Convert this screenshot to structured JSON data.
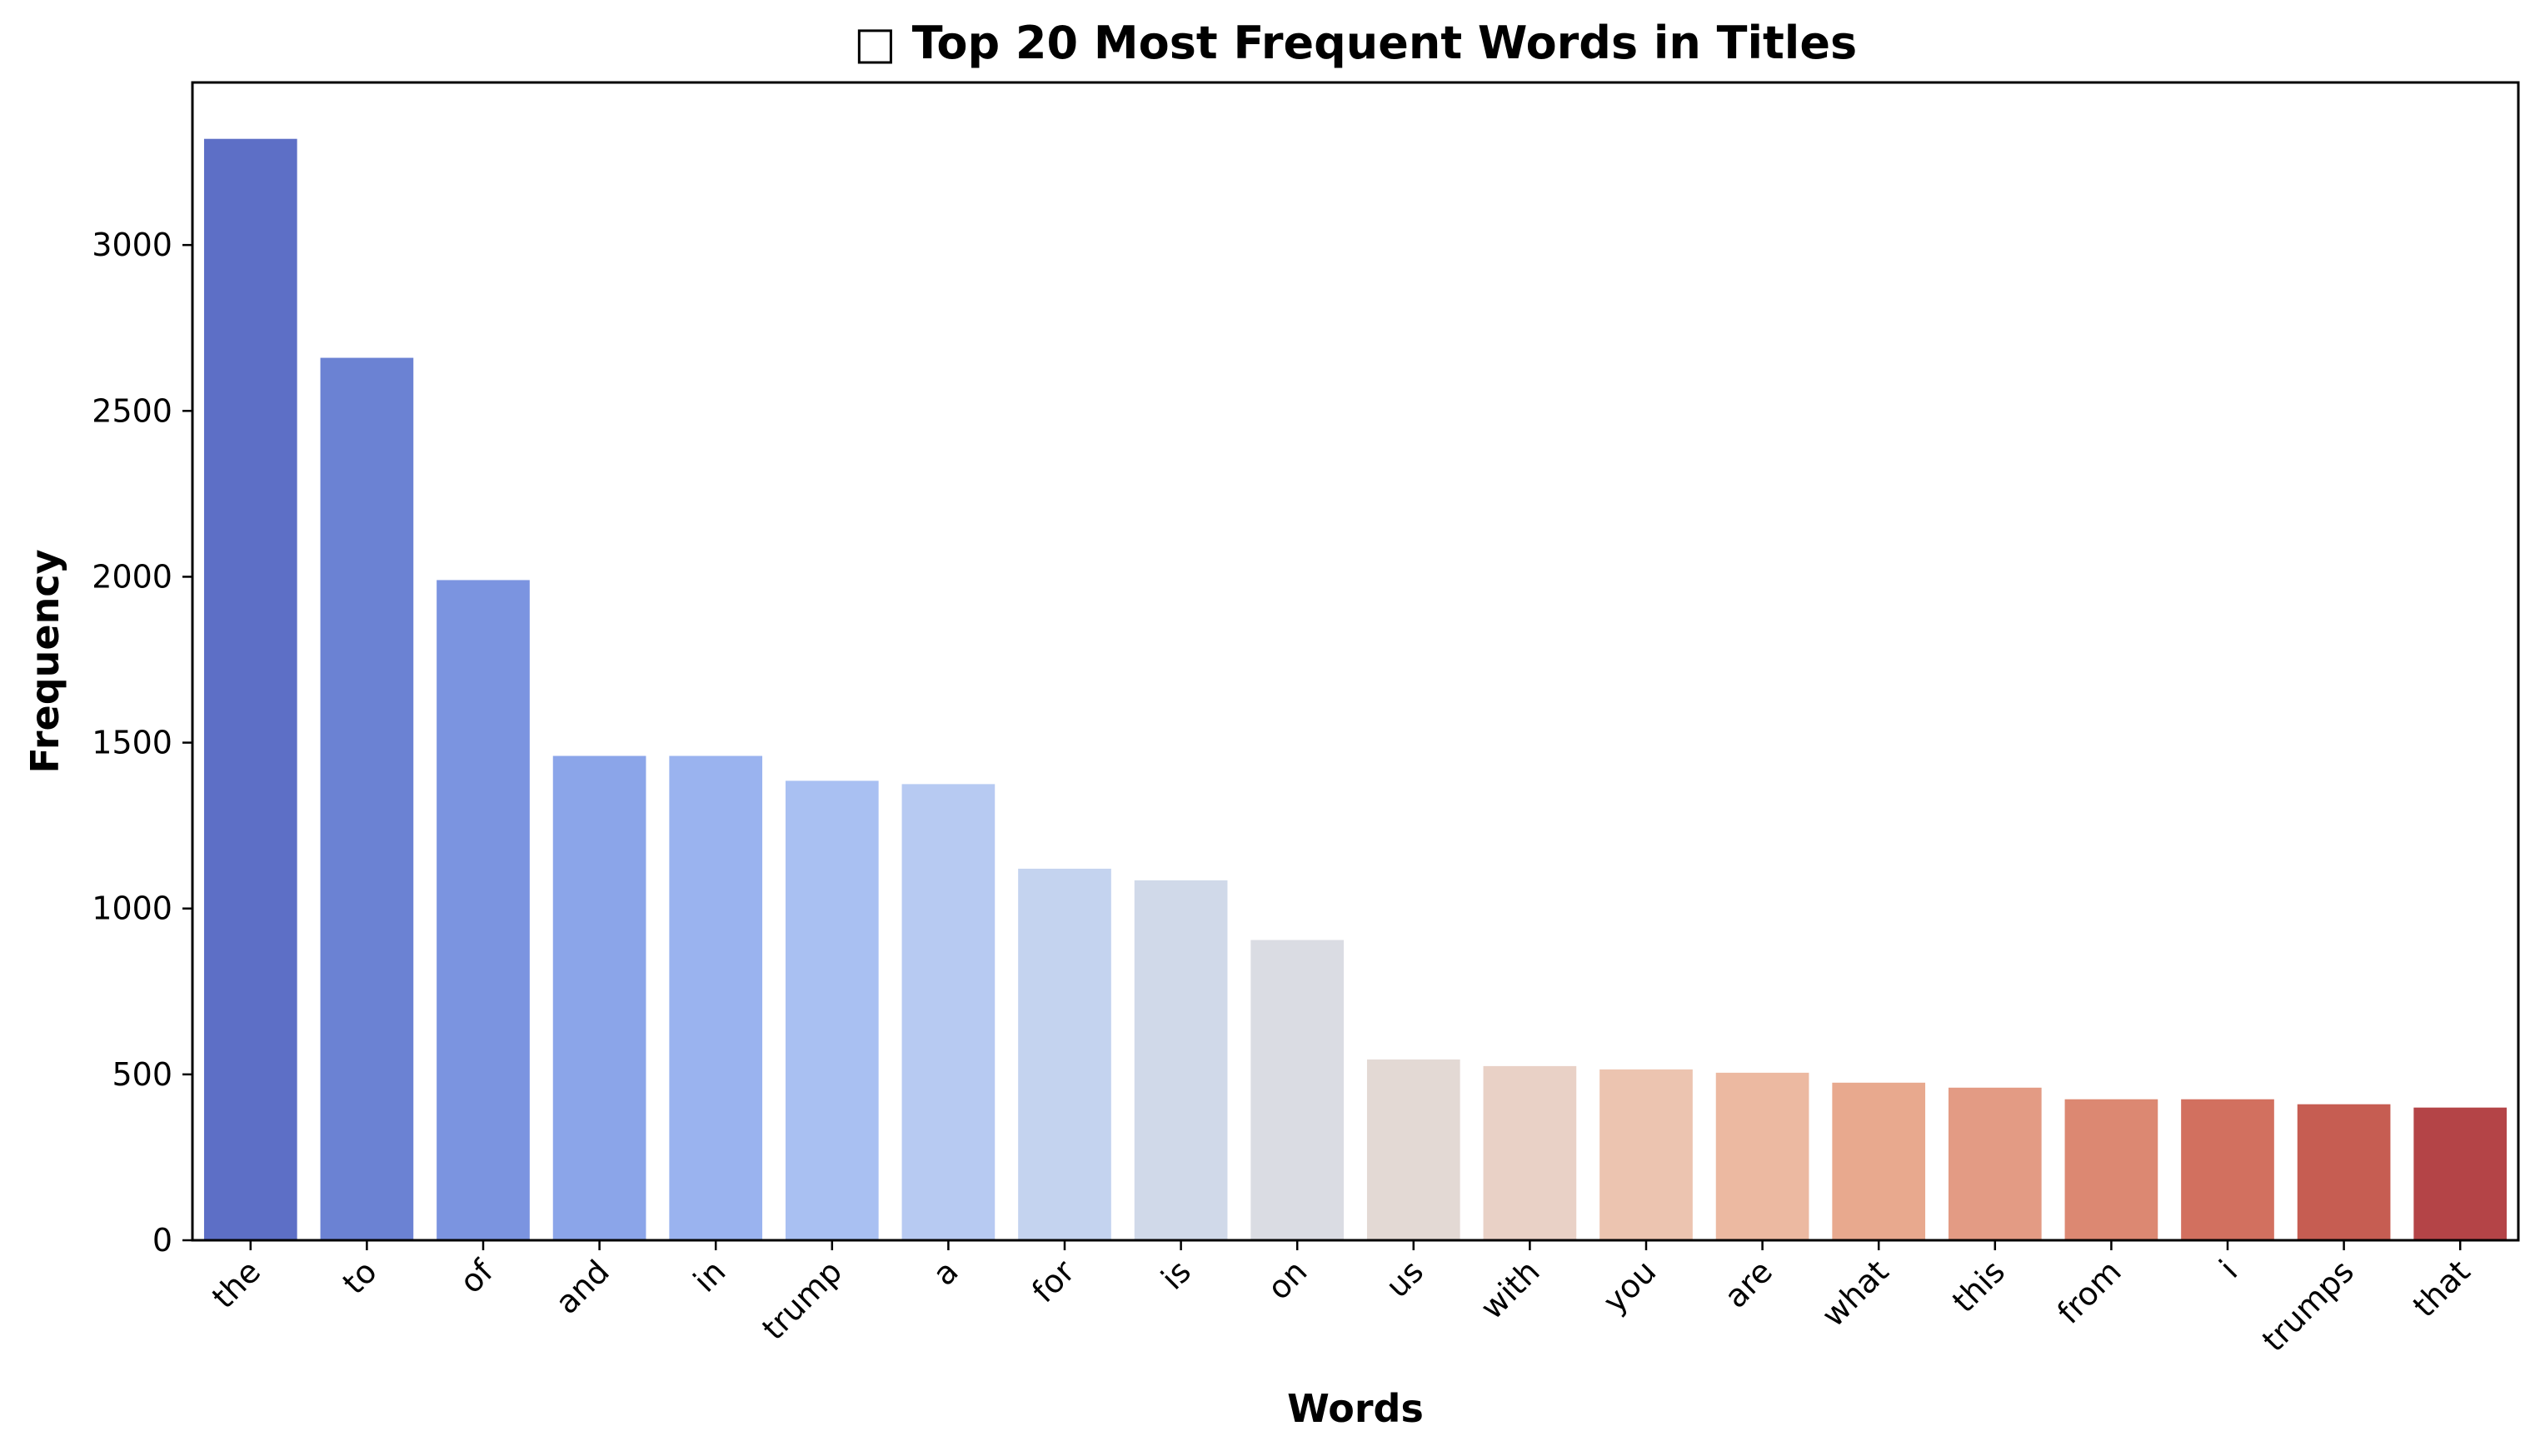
{
  "chart_data": {
    "type": "bar",
    "title": "□ Top 20 Most Frequent Words in Titles",
    "xlabel": "Words",
    "ylabel": "Frequency",
    "categories": [
      "the",
      "to",
      "of",
      "and",
      "in",
      "trump",
      "a",
      "for",
      "is",
      "on",
      "us",
      "with",
      "you",
      "are",
      "what",
      "this",
      "from",
      "i",
      "trumps",
      "that"
    ],
    "values": [
      3320,
      2660,
      1990,
      1460,
      1460,
      1385,
      1375,
      1120,
      1085,
      905,
      545,
      525,
      515,
      505,
      475,
      460,
      425,
      425,
      410,
      400
    ],
    "colors": [
      "#5d6fc6",
      "#6b82d3",
      "#7b94e0",
      "#8ba5e9",
      "#9ab3ef",
      "#a9c0f2",
      "#b7caf2",
      "#c4d3ef",
      "#d0d9e9",
      "#dadce3",
      "#e3d9d4",
      "#e9d1c6",
      "#ecc4b0",
      "#ecb9a1",
      "#e8a98e",
      "#e39b84",
      "#dc8872",
      "#d2705f",
      "#c65d52",
      "#b44447"
    ],
    "ylim": [
      0,
      3490
    ],
    "yticks": [
      0,
      500,
      1000,
      1500,
      2000,
      2500,
      3000
    ],
    "grid": false,
    "legend": "none"
  }
}
